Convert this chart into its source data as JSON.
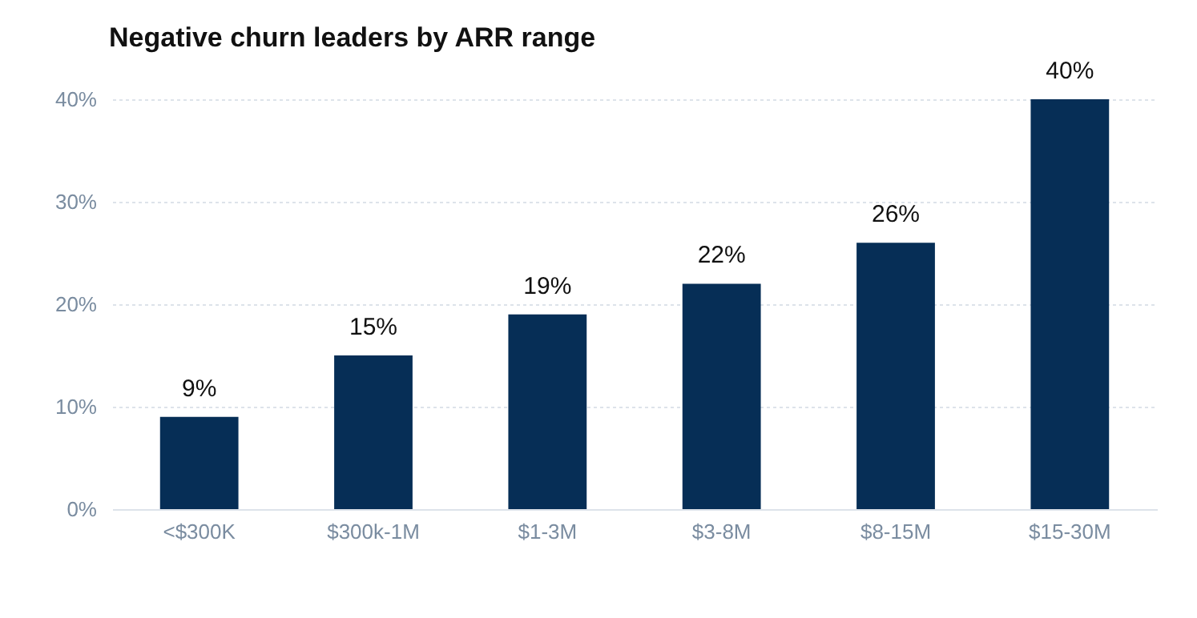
{
  "chart_data": {
    "type": "bar",
    "title": "Negative churn leaders by ARR range",
    "categories": [
      "<$300K",
      "$300k-1M",
      "$1-3M",
      "$3-8M",
      "$8-15M",
      "$15-30M"
    ],
    "values": [
      9,
      15,
      19,
      22,
      26,
      40
    ],
    "value_labels": [
      "9%",
      "15%",
      "19%",
      "22%",
      "26%",
      "40%"
    ],
    "color": "#062e56",
    "ylim": [
      0,
      40
    ],
    "yticks": [
      {
        "value": 0,
        "label": "0%"
      },
      {
        "value": 10,
        "label": "10%"
      },
      {
        "value": 20,
        "label": "20%"
      },
      {
        "value": 30,
        "label": "30%"
      },
      {
        "value": 40,
        "label": "40%"
      }
    ],
    "grid": "y"
  }
}
